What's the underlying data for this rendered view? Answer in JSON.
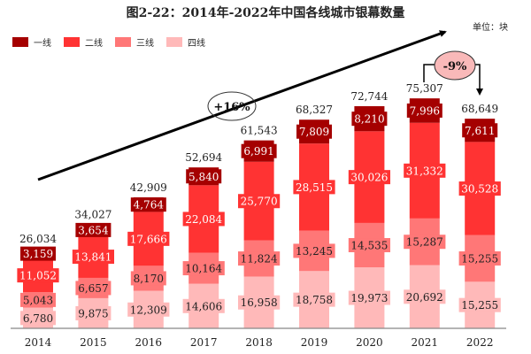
{
  "chart_data": {
    "type": "bar",
    "stacked": true,
    "title": "图2-22：2014年-2022年中国各线城市银幕数量",
    "unit_label": "单位：块",
    "categories": [
      "2014",
      "2015",
      "2016",
      "2017",
      "2018",
      "2019",
      "2020",
      "2021",
      "2022"
    ],
    "series": [
      {
        "name": "四线",
        "color": "#ffb9b9",
        "values": [
          6780,
          9875,
          12309,
          14606,
          16958,
          18758,
          19973,
          20692,
          15255
        ]
      },
      {
        "name": "三线",
        "color": "#ff7777",
        "values": [
          5043,
          6657,
          8170,
          10164,
          11824,
          13245,
          14535,
          15287,
          15255
        ]
      },
      {
        "name": "二线",
        "color": "#ff3333",
        "values": [
          11052,
          13841,
          17666,
          22084,
          25770,
          28515,
          30026,
          31332,
          30528
        ]
      },
      {
        "name": "一线",
        "color": "#a50000",
        "values": [
          3159,
          3654,
          4764,
          5840,
          6991,
          7809,
          8210,
          7996,
          7611
        ]
      }
    ],
    "totals": [
      26034,
      34027,
      42909,
      52694,
      61543,
      68327,
      72744,
      75307,
      68649
    ],
    "legend_order": [
      "一线",
      "二线",
      "三线",
      "四线"
    ],
    "legend_position": "top-left",
    "ylim": [
      0,
      80000
    ],
    "grid": false,
    "annotations": {
      "growth": "+16%",
      "decline": "-9%"
    }
  }
}
